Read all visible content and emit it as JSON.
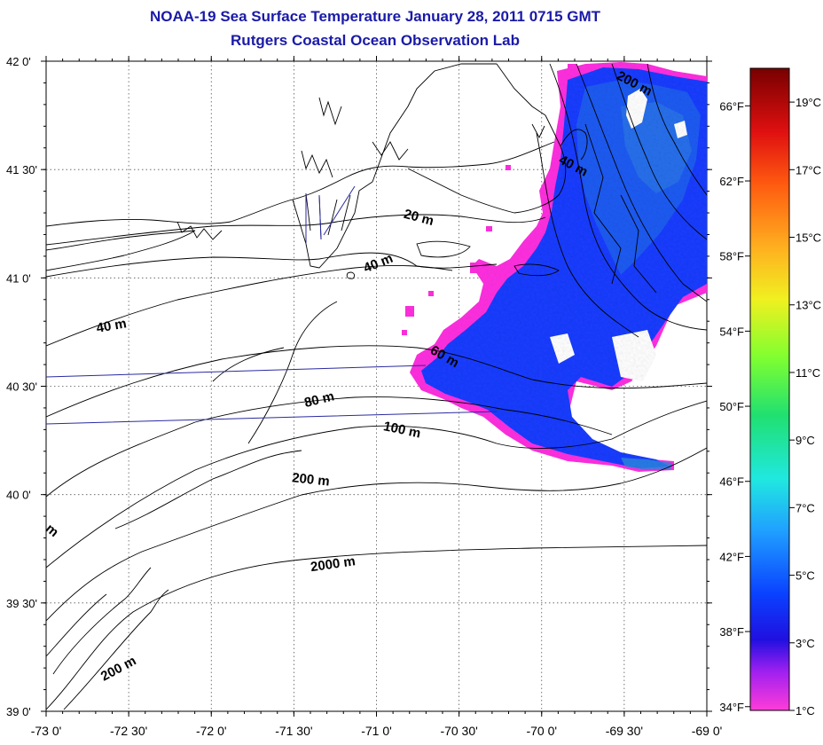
{
  "title": "NOAA-19 Sea Surface Temperature January 28, 2011 0715 GMT",
  "subtitle": "Rutgers Coastal Ocean Observation Lab",
  "map": {
    "lon_range": [
      -73.0,
      -69.0
    ],
    "lat_range": [
      39.0,
      42.0
    ],
    "grid": true,
    "lon_ticks": [
      {
        "value": -73.0,
        "label": "-73 0'"
      },
      {
        "value": -72.5,
        "label": "-72 30'"
      },
      {
        "value": -72.0,
        "label": "-72 0'"
      },
      {
        "value": -71.5,
        "label": "-71 30'"
      },
      {
        "value": -71.0,
        "label": "-71 0'"
      },
      {
        "value": -70.5,
        "label": "-70 30'"
      },
      {
        "value": -70.0,
        "label": "-70 0'"
      },
      {
        "value": -69.5,
        "label": "-69 30'"
      },
      {
        "value": -69.0,
        "label": "-69 0'"
      }
    ],
    "lat_ticks": [
      {
        "value": 42.0,
        "label": "42 0'"
      },
      {
        "value": 41.5,
        "label": "41 30'"
      },
      {
        "value": 41.0,
        "label": "41 0'"
      },
      {
        "value": 40.5,
        "label": "40 30'"
      },
      {
        "value": 40.0,
        "label": "40 0'"
      },
      {
        "value": 39.5,
        "label": "39 30'"
      },
      {
        "value": 39.0,
        "label": "39 0'"
      }
    ],
    "contour_labels": [
      {
        "text": "200 m",
        "lon": -69.45,
        "lat": 41.88
      },
      {
        "text": "40 m",
        "lon": -69.82,
        "lat": 41.5
      },
      {
        "text": "20 m",
        "lon": -70.75,
        "lat": 41.26
      },
      {
        "text": "40 m",
        "lon": -70.98,
        "lat": 41.05
      },
      {
        "text": "40 m",
        "lon": -72.6,
        "lat": 40.76
      },
      {
        "text": "60 m",
        "lon": -70.6,
        "lat": 40.62
      },
      {
        "text": "80 m",
        "lon": -71.34,
        "lat": 40.42
      },
      {
        "text": "100 m",
        "lon": -70.85,
        "lat": 40.28
      },
      {
        "text": "200 m",
        "lon": -71.4,
        "lat": 40.05
      },
      {
        "text": "2000 m",
        "lon": -71.26,
        "lat": 39.66
      },
      {
        "text": "200 m",
        "lon": -72.55,
        "lat": 39.18
      },
      {
        "text": "m",
        "lon": -72.98,
        "lat": 39.82
      }
    ]
  },
  "colorbar": {
    "celsius": [
      {
        "label": "19°C",
        "value": 19
      },
      {
        "label": "17°C",
        "value": 17
      },
      {
        "label": "15°C",
        "value": 15
      },
      {
        "label": "13°C",
        "value": 13
      },
      {
        "label": "11°C",
        "value": 11
      },
      {
        "label": "9°C",
        "value": 9
      },
      {
        "label": "7°C",
        "value": 7
      },
      {
        "label": "5°C",
        "value": 5
      },
      {
        "label": "3°C",
        "value": 3
      },
      {
        "label": "1°C",
        "value": 1
      }
    ],
    "fahrenheit": [
      {
        "label": "66°F",
        "value": 66
      },
      {
        "label": "62°F",
        "value": 62
      },
      {
        "label": "58°F",
        "value": 58
      },
      {
        "label": "54°F",
        "value": 54
      },
      {
        "label": "50°F",
        "value": 50
      },
      {
        "label": "46°F",
        "value": 46
      },
      {
        "label": "42°F",
        "value": 42
      },
      {
        "label": "38°F",
        "value": 38
      },
      {
        "label": "34°F",
        "value": 34
      }
    ],
    "range_c": [
      1,
      20
    ]
  },
  "colors": {
    "title": "#1a1aa8",
    "shipping_lanes": "#2a2aa0",
    "sst_cold": "#ff30e0",
    "sst_core": "#1a3cff",
    "sst_mid": "#2060f0"
  }
}
